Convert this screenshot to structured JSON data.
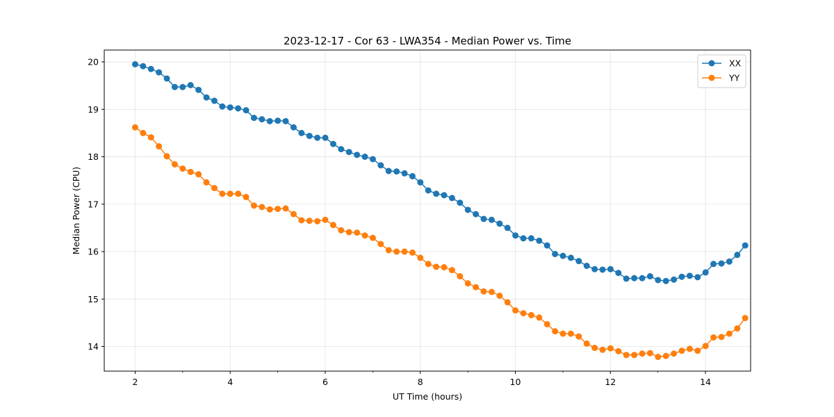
{
  "chart_data": {
    "type": "line",
    "title": "2023-12-17 - Cor 63 - LWA354 - Median Power vs. Time",
    "xlabel": "UT Time (hours)",
    "ylabel": "Median Power (CPU)",
    "xlim": [
      1.35,
      14.95
    ],
    "ylim": [
      13.48,
      20.25
    ],
    "xticks": [
      2,
      4,
      6,
      8,
      10,
      12,
      14
    ],
    "yticks": [
      14,
      15,
      16,
      17,
      18,
      19,
      20
    ],
    "grid": true,
    "legend_position": "top-right",
    "x_start": 2.0,
    "x_step": 0.1667,
    "series": [
      {
        "name": "XX",
        "color": "#1f77b4",
        "values": [
          19.95,
          19.91,
          19.85,
          19.78,
          19.65,
          19.47,
          19.47,
          19.51,
          19.41,
          19.25,
          19.18,
          19.06,
          19.04,
          19.02,
          18.98,
          18.82,
          18.79,
          18.75,
          18.76,
          18.75,
          18.62,
          18.5,
          18.44,
          18.4,
          18.4,
          18.27,
          18.16,
          18.1,
          18.04,
          18.0,
          17.95,
          17.82,
          17.7,
          17.69,
          17.65,
          17.59,
          17.46,
          17.29,
          17.22,
          17.19,
          17.13,
          17.03,
          16.88,
          16.79,
          16.69,
          16.67,
          16.59,
          16.5,
          16.34,
          16.28,
          16.28,
          16.23,
          16.13,
          15.95,
          15.91,
          15.87,
          15.8,
          15.7,
          15.63,
          15.62,
          15.63,
          15.55,
          15.43,
          15.44,
          15.44,
          15.48,
          15.4,
          15.38,
          15.41,
          15.47,
          15.49,
          15.46,
          15.56,
          15.74,
          15.75,
          15.79,
          15.93,
          16.13
        ]
      },
      {
        "name": "YY",
        "color": "#ff7f0e",
        "values": [
          18.62,
          18.5,
          18.41,
          18.22,
          18.01,
          17.84,
          17.75,
          17.68,
          17.63,
          17.46,
          17.34,
          17.22,
          17.22,
          17.22,
          17.15,
          16.97,
          16.94,
          16.89,
          16.9,
          16.91,
          16.79,
          16.66,
          16.65,
          16.64,
          16.67,
          16.56,
          16.45,
          16.41,
          16.4,
          16.34,
          16.29,
          16.16,
          16.03,
          16.0,
          16.0,
          15.98,
          15.87,
          15.74,
          15.68,
          15.67,
          15.61,
          15.48,
          15.33,
          15.25,
          15.16,
          15.15,
          15.07,
          14.93,
          14.76,
          14.7,
          14.66,
          14.61,
          14.47,
          14.32,
          14.27,
          14.27,
          14.21,
          14.06,
          13.97,
          13.93,
          13.96,
          13.9,
          13.82,
          13.82,
          13.85,
          13.86,
          13.78,
          13.8,
          13.85,
          13.91,
          13.95,
          13.91,
          14.01,
          14.19,
          14.2,
          14.27,
          14.38,
          14.6
        ]
      }
    ]
  }
}
